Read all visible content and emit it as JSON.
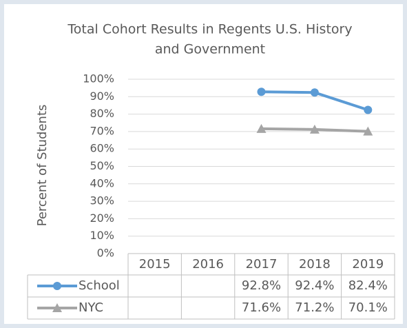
{
  "chart_data": {
    "type": "line",
    "title": "Total Cohort Results in Regents U.S. History and Government",
    "title_lines": [
      "Total Cohort Results in Regents U.S. History",
      "and Government"
    ],
    "y_label": "Percent of Students",
    "categories": [
      "2015",
      "2016",
      "2017",
      "2018",
      "2019"
    ],
    "series": [
      {
        "name": "School",
        "color": "#5b9bd5",
        "marker": "circle",
        "values": [
          null,
          null,
          92.8,
          92.4,
          82.4
        ],
        "value_labels": [
          null,
          null,
          "92.8%",
          "92.4%",
          "82.4%"
        ]
      },
      {
        "name": "NYC",
        "color": "#a5a5a5",
        "marker": "triangle",
        "values": [
          null,
          null,
          71.6,
          71.2,
          70.1
        ],
        "value_labels": [
          null,
          null,
          "71.6%",
          "71.2%",
          "70.1%"
        ]
      }
    ],
    "ylim": [
      0,
      100
    ],
    "yticks": [
      {
        "value": 0,
        "label": "0%"
      },
      {
        "value": 10,
        "label": "10%"
      },
      {
        "value": 20,
        "label": "20%"
      },
      {
        "value": 30,
        "label": "30%"
      },
      {
        "value": 40,
        "label": "40%"
      },
      {
        "value": 50,
        "label": "50%"
      },
      {
        "value": 60,
        "label": "60%"
      },
      {
        "value": 70,
        "label": "70%"
      },
      {
        "value": 80,
        "label": "80%"
      },
      {
        "value": 90,
        "label": "90%"
      },
      {
        "value": 100,
        "label": "100%"
      }
    ],
    "grid": true,
    "data_table": true
  }
}
